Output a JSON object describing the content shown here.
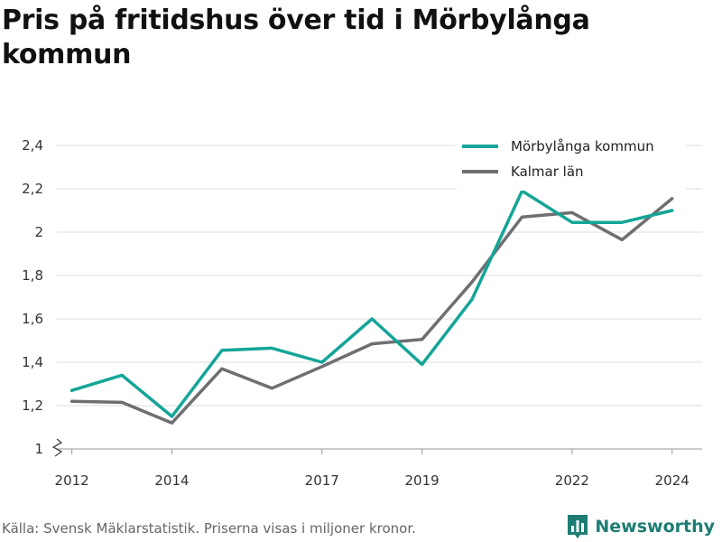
{
  "title": "Pris på fritidshus över tid i Mörbylånga kommun",
  "source": "Källa: Svensk Mäklarstatistik. Priserna visas i miljoner kronor.",
  "brand": {
    "name": "Newsworthy",
    "icon": "newsworthy-bar-chart-icon"
  },
  "chart_data": {
    "type": "line",
    "x": [
      2012,
      2013,
      2014,
      2015,
      2016,
      2017,
      2018,
      2019,
      2020,
      2021,
      2022,
      2023,
      2024
    ],
    "x_ticks": [
      2012,
      2014,
      2017,
      2019,
      2022,
      2024
    ],
    "x_tick_labels": [
      "2012",
      "2014",
      "2017",
      "2019",
      "2022",
      "2024"
    ],
    "y_ticks": [
      1,
      1.2,
      1.4,
      1.6,
      1.8,
      2,
      2.2,
      2.4
    ],
    "y_tick_labels": [
      "1",
      "1,2",
      "1,4",
      "1,6",
      "1,8",
      "2",
      "2,2",
      "2,4"
    ],
    "ylim": [
      1,
      2.4
    ],
    "axis_break": true,
    "grid": true,
    "legend_position": "top-right",
    "series": [
      {
        "name": "Mörbylånga kommun",
        "color": "#14a597",
        "values": [
          1.27,
          1.34,
          1.15,
          1.455,
          1.465,
          1.4,
          1.6,
          1.39,
          1.69,
          2.19,
          2.045,
          2.045,
          2.1
        ]
      },
      {
        "name": "Kalmar län",
        "color": "#6e6e73",
        "values": [
          1.22,
          1.215,
          1.12,
          1.37,
          1.28,
          1.38,
          1.485,
          1.505,
          1.77,
          2.07,
          2.09,
          1.965,
          2.155
        ]
      }
    ]
  }
}
